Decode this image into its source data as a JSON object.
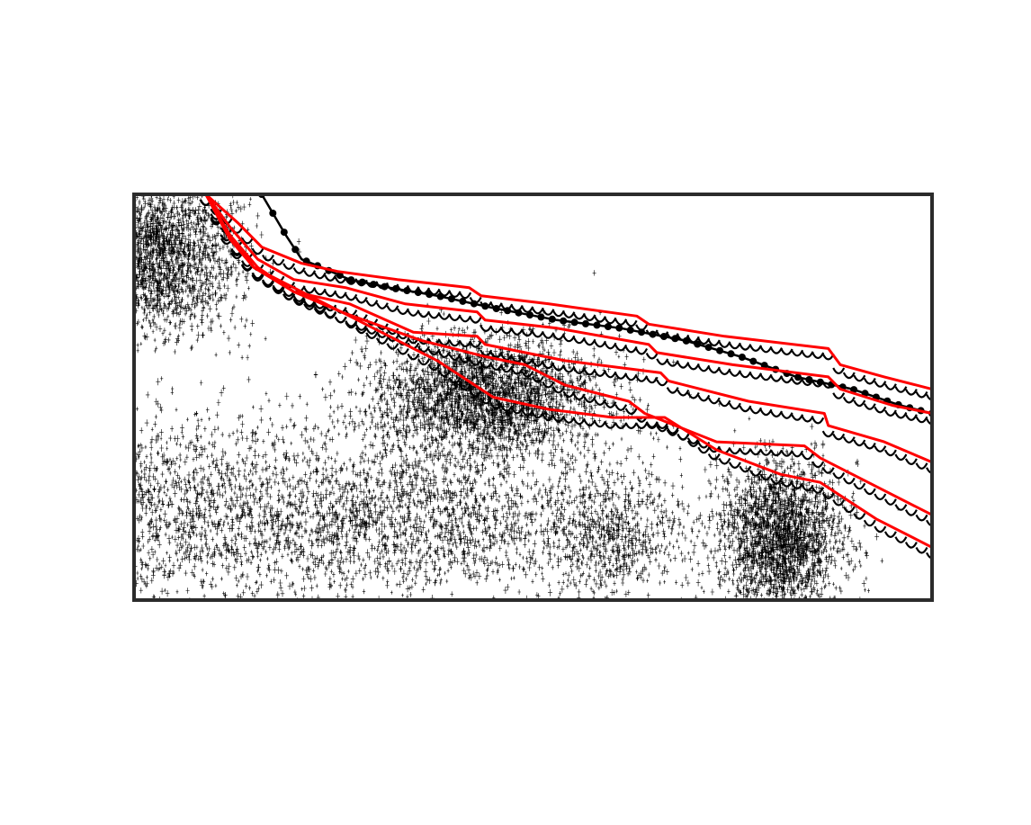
{
  "chart_data": {
    "type": "scatter",
    "title": "",
    "xlabel": "",
    "ylabel": "",
    "tick_labels_shown": false,
    "legend": "none",
    "grid": false,
    "xlim": [
      0,
      1
    ],
    "ylim": [
      0,
      1
    ],
    "colors": {
      "frame": "#2b2b2b",
      "boundary": "#ff0000",
      "points": "#000000",
      "background": "#ffffff"
    },
    "series": [
      {
        "kind": "envelope-markers",
        "marker": "filled-circle",
        "x": [
          0.16,
          0.19,
          0.21,
          0.235,
          0.27,
          0.32,
          0.38,
          0.45,
          0.53,
          0.61,
          0.69,
          0.76,
          0.83,
          0.9,
          0.96,
          1.0
        ],
        "y": [
          1.0,
          0.9,
          0.84,
          0.82,
          0.79,
          0.77,
          0.75,
          0.72,
          0.69,
          0.67,
          0.64,
          0.6,
          0.55,
          0.52,
          0.48,
          0.46
        ]
      },
      {
        "kind": "boundary-curves",
        "count": 5,
        "curves": [
          {
            "x": [
              0.09,
              0.13,
              0.16,
              0.21,
              0.255,
              0.33,
              0.42,
              0.435,
              0.52,
              0.63,
              0.645,
              0.74,
              0.87,
              0.885,
              0.94,
              1.0
            ],
            "y": [
              1.0,
              0.93,
              0.87,
              0.83,
              0.81,
              0.79,
              0.77,
              0.75,
              0.73,
              0.7,
              0.68,
              0.65,
              0.62,
              0.58,
              0.55,
              0.52
            ]
          },
          {
            "x": [
              0.09,
              0.12,
              0.155,
              0.2,
              0.265,
              0.34,
              0.43,
              0.44,
              0.53,
              0.645,
              0.655,
              0.75,
              0.87,
              0.885,
              0.95,
              1.0
            ],
            "y": [
              1.0,
              0.92,
              0.84,
              0.79,
              0.77,
              0.73,
              0.71,
              0.69,
              0.67,
              0.63,
              0.61,
              0.58,
              0.55,
              0.52,
              0.48,
              0.46
            ]
          },
          {
            "x": [
              0.09,
              0.12,
              0.155,
              0.2,
              0.27,
              0.35,
              0.43,
              0.44,
              0.54,
              0.66,
              0.67,
              0.77,
              0.865,
              0.87,
              0.94,
              1.0
            ],
            "y": [
              1.0,
              0.9,
              0.82,
              0.76,
              0.73,
              0.66,
              0.65,
              0.63,
              0.59,
              0.56,
              0.54,
              0.49,
              0.46,
              0.43,
              0.39,
              0.34
            ]
          },
          {
            "x": [
              0.09,
              0.12,
              0.15,
              0.2,
              0.26,
              0.36,
              0.44,
              0.49,
              0.54,
              0.62,
              0.64,
              0.73,
              0.84,
              0.86,
              0.93,
              1.0
            ],
            "y": [
              1.0,
              0.89,
              0.82,
              0.76,
              0.71,
              0.64,
              0.6,
              0.58,
              0.53,
              0.49,
              0.46,
              0.39,
              0.38,
              0.35,
              0.28,
              0.21
            ]
          },
          {
            "x": [
              0.09,
              0.12,
              0.15,
              0.18,
              0.24,
              0.3,
              0.38,
              0.45,
              0.52,
              0.6,
              0.665,
              0.73,
              0.81,
              0.86,
              0.93,
              1.0
            ],
            "y": [
              1.0,
              0.9,
              0.82,
              0.79,
              0.73,
              0.67,
              0.59,
              0.5,
              0.47,
              0.45,
              0.45,
              0.37,
              0.31,
              0.29,
              0.2,
              0.13
            ]
          }
        ]
      },
      {
        "kind": "density-clouds",
        "marker": "plus",
        "regions": [
          {
            "cx": 0.06,
            "cy": 0.22,
            "rx": 0.3,
            "ry": 0.22,
            "density": 0.9
          },
          {
            "cx": 0.03,
            "cy": 0.85,
            "rx": 0.09,
            "ry": 0.18,
            "density": 0.8
          },
          {
            "cx": 0.44,
            "cy": 0.5,
            "rx": 0.13,
            "ry": 0.13,
            "density": 1.0
          },
          {
            "cx": 0.38,
            "cy": 0.2,
            "rx": 0.2,
            "ry": 0.18,
            "density": 0.6
          },
          {
            "cx": 0.81,
            "cy": 0.15,
            "rx": 0.07,
            "ry": 0.17,
            "density": 1.0
          },
          {
            "cx": 0.6,
            "cy": 0.15,
            "rx": 0.08,
            "ry": 0.15,
            "density": 0.25
          }
        ]
      }
    ]
  }
}
